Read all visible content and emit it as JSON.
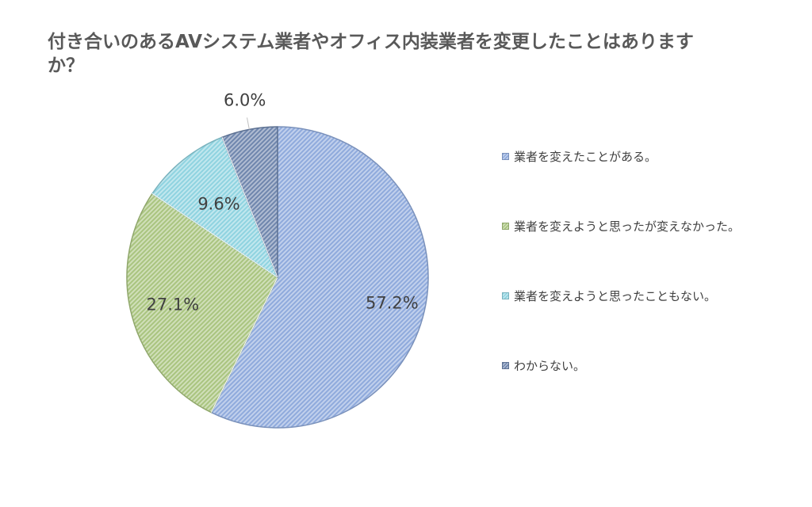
{
  "chart_data": {
    "type": "pie",
    "title": "付き合いのあるAVシステム業者やオフィス内装業者を変更したことはありますか？",
    "categories": [
      "業者を変えたことがある。",
      "業者を変えようと思ったが変えなかった。",
      "業者を変えようと思ったこともない。",
      "わからない。"
    ],
    "values": [
      57.2,
      27.1,
      9.6,
      6.0
    ],
    "data_labels": [
      "57.2%",
      "27.1%",
      "9.6%",
      "6.0%"
    ],
    "colors": [
      "#8faadc",
      "#a9c47f",
      "#8fd3e0",
      "#6f86ad"
    ],
    "legend_position": "right",
    "start_angle_deg": 0,
    "direction": "clockwise",
    "pattern": "diagonal-hatch"
  }
}
